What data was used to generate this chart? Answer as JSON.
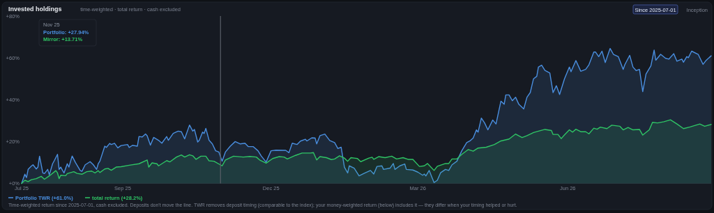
{
  "chart_data": {
    "type": "area",
    "title": "Invested holdings",
    "subtitle": "time-weighted · total return · cash excluded",
    "xlim": [
      "2025-07-01",
      "2026-08-28"
    ],
    "xticks": [
      {
        "value": "2025-07-01",
        "label": "Jul 25"
      },
      {
        "value": "2025-09-01",
        "label": "Sep 25"
      },
      {
        "value": "2025-12-01",
        "label": "Dec 25"
      },
      {
        "value": "2026-03-01",
        "label": "Mar 26"
      },
      {
        "value": "2026-06-01",
        "label": "Jun 26"
      }
    ],
    "ylim": [
      0,
      80
    ],
    "yticks": [
      {
        "value": 0,
        "label": "+0%"
      },
      {
        "value": 20,
        "label": "+20%"
      },
      {
        "value": 40,
        "label": "+40%"
      },
      {
        "value": 60,
        "label": "+60%"
      },
      {
        "value": 80,
        "label": "+80%"
      }
    ],
    "grid": false,
    "legend": "bottom left",
    "line_style": "solid",
    "ref_lines": [
      {
        "axis": "x",
        "value": "2025-10-31",
        "color": "#5a5f68"
      }
    ],
    "annotations": [
      "Since 2025-07-01",
      "Inception",
      "Nov 25",
      "Portfolio: +27.94%",
      "Mirror: +13.71%",
      "Time-weighted return since 2025-07-01, cash excluded. Deposits don't move the line. TWR removes deposit timing (comparable to the index); your money-weighted return (below) includes it — they differ when your timing helped or hurt."
    ],
    "series": [
      {
        "name": "Portfolio TWR (+61.0%)",
        "color": "#4a8fe0",
        "x": [
          "2025-07-01",
          "2025-07-03",
          "2025-07-04",
          "2025-07-05",
          "2025-07-07",
          "2025-07-08",
          "2025-07-10",
          "2025-07-11",
          "2025-07-12",
          "2025-07-14",
          "2025-07-15",
          "2025-07-17",
          "2025-07-18",
          "2025-07-20",
          "2025-07-21",
          "2025-07-23",
          "2025-07-24",
          "2025-07-25",
          "2025-07-27",
          "2025-07-29",
          "2025-07-30",
          "2025-08-01",
          "2025-08-03",
          "2025-08-06",
          "2025-08-07",
          "2025-08-09",
          "2025-08-12",
          "2025-08-14",
          "2025-08-16",
          "2025-08-17",
          "2025-08-18",
          "2025-08-21",
          "2025-08-22",
          "2025-08-24",
          "2025-08-25",
          "2025-08-27",
          "2025-08-29",
          "2025-08-31",
          "2025-09-04",
          "2025-09-05",
          "2025-09-07",
          "2025-09-10",
          "2025-09-11",
          "2025-09-13",
          "2025-09-15",
          "2025-09-16",
          "2025-09-18",
          "2025-09-20",
          "2025-09-23",
          "2025-09-25",
          "2025-09-28",
          "2025-09-29",
          "2025-10-02",
          "2025-10-05",
          "2025-10-07",
          "2025-10-09",
          "2025-10-12",
          "2025-10-14",
          "2025-10-15",
          "2025-10-17",
          "2025-10-18",
          "2025-10-20",
          "2025-10-21",
          "2025-10-22",
          "2025-10-24",
          "2025-10-26",
          "2025-10-28",
          "2025-10-30",
          "2025-11-01",
          "2025-11-03",
          "2025-11-06",
          "2025-11-09",
          "2025-11-12",
          "2025-11-15",
          "2025-11-17",
          "2025-11-20",
          "2025-11-23",
          "2025-11-25",
          "2025-11-28",
          "2025-12-01",
          "2025-12-04",
          "2025-12-10",
          "2025-12-12",
          "2025-12-14",
          "2025-12-17",
          "2025-12-19",
          "2025-12-22",
          "2025-12-23",
          "2025-12-26",
          "2025-12-28",
          "2025-12-29",
          "2025-12-31",
          "2026-01-03",
          "2026-01-06",
          "2026-01-09",
          "2026-01-11",
          "2026-01-13",
          "2026-01-15",
          "2026-01-17",
          "2026-01-18",
          "2026-01-21",
          "2026-01-24",
          "2026-01-27",
          "2026-01-31",
          "2026-02-02",
          "2026-02-04",
          "2026-02-07",
          "2026-02-08",
          "2026-02-12",
          "2026-02-14",
          "2026-02-15",
          "2026-02-18",
          "2026-02-21",
          "2026-02-22",
          "2026-02-26",
          "2026-03-01",
          "2026-03-04",
          "2026-03-05",
          "2026-03-06",
          "2026-03-08",
          "2026-03-10",
          "2026-03-11",
          "2026-03-13",
          "2026-03-15",
          "2026-03-18",
          "2026-03-20",
          "2026-03-22",
          "2026-03-25",
          "2026-03-28",
          "2026-03-31",
          "2026-04-02",
          "2026-04-04",
          "2026-04-06",
          "2026-04-07",
          "2026-04-09",
          "2026-04-11",
          "2026-04-13",
          "2026-04-16",
          "2026-04-18",
          "2026-04-21",
          "2026-04-23",
          "2026-04-24",
          "2026-04-26",
          "2026-04-28",
          "2026-04-30",
          "2026-05-02",
          "2026-05-05",
          "2026-05-07",
          "2026-05-09",
          "2026-05-11",
          "2026-05-13",
          "2026-05-14",
          "2026-05-16",
          "2026-05-18",
          "2026-05-21",
          "2026-05-23",
          "2026-05-25",
          "2026-05-27",
          "2026-05-30",
          "2026-06-02",
          "2026-06-03",
          "2026-06-06",
          "2026-06-09",
          "2026-06-12",
          "2026-06-14",
          "2026-06-17",
          "2026-06-18",
          "2026-06-20",
          "2026-06-22",
          "2026-06-24",
          "2026-06-27",
          "2026-06-29",
          "2026-07-02",
          "2026-07-05",
          "2026-07-06",
          "2026-07-09",
          "2026-07-11",
          "2026-07-13",
          "2026-07-15",
          "2026-07-17",
          "2026-07-19",
          "2026-07-22",
          "2026-07-24",
          "2026-07-25",
          "2026-07-28",
          "2026-07-31",
          "2026-08-02",
          "2026-08-05",
          "2026-08-07",
          "2026-08-10",
          "2026-08-11",
          "2026-08-13",
          "2026-08-14",
          "2026-08-16",
          "2026-08-20",
          "2026-08-23",
          "2026-08-25",
          "2026-08-28"
        ],
        "values": [
          0,
          4.4,
          2.8,
          6.7,
          8.3,
          8.9,
          6.9,
          7.8,
          13,
          5,
          4.7,
          6.7,
          4.1,
          9.4,
          10.8,
          13.9,
          6.7,
          7.8,
          5,
          9.4,
          7.8,
          13.1,
          10,
          6.1,
          5.8,
          8.9,
          10.4,
          8.9,
          6.7,
          9.4,
          10.6,
          17.8,
          17.2,
          19.1,
          18.6,
          19.2,
          17,
          18.1,
          18.6,
          17.2,
          18.2,
          17.8,
          22.4,
          22.2,
          23.6,
          22.8,
          18.3,
          22,
          20.6,
          19.2,
          22.4,
          20.6,
          23.9,
          25,
          24.7,
          21.3,
          27.9,
          25,
          25.8,
          19.8,
          20.6,
          24.5,
          23.9,
          26.3,
          20.6,
          18.9,
          15.6,
          15,
          10.6,
          15,
          17.8,
          20,
          18.9,
          19.2,
          17.6,
          17.6,
          15.6,
          13.1,
          10.2,
          15.6,
          15.9,
          15.8,
          14.7,
          19.2,
          18.6,
          20.2,
          21.1,
          20.3,
          21.8,
          21.7,
          18.9,
          22.8,
          23.6,
          20.5,
          19.5,
          16.7,
          17.3,
          7.8,
          5,
          8.4,
          7.3,
          3.6,
          4.8,
          6.2,
          4.5,
          8.1,
          8.4,
          6.7,
          7.3,
          9.5,
          6.7,
          8.4,
          9.3,
          6.7,
          6.4,
          5.4,
          3.9,
          4.5,
          3.6,
          6.2,
          2.3,
          0.4,
          1.5,
          5.1,
          6.7,
          6.2,
          8.9,
          10.6,
          15.6,
          19.5,
          20.3,
          21.7,
          25.6,
          24.5,
          31.2,
          28.9,
          25.6,
          30.3,
          28.4,
          39.3,
          37.8,
          42.3,
          42.3,
          39.5,
          41.2,
          37.8,
          35.6,
          41.2,
          43.4,
          50,
          51.2,
          55.6,
          56.5,
          54,
          52.8,
          43.4,
          46.7,
          42.5,
          50,
          55.6,
          53.4,
          58.7,
          53.6,
          54.5,
          56.7,
          62.8,
          62.8,
          60.6,
          63.2,
          57.8,
          64.5,
          61.7,
          60.6,
          54.5,
          56.7,
          61.2,
          55.6,
          53.9,
          54.5,
          43.9,
          52.3,
          56.2,
          63.7,
          58.9,
          61.7,
          59.8,
          59.4,
          62,
          58.4,
          59.4,
          57.9,
          60.6,
          60.1,
          63.2,
          61.7,
          56.9,
          58.9,
          61
        ]
      },
      {
        "name": "total return (+28.2%)",
        "color": "#2fc565",
        "x": [
          "2025-07-01",
          "2025-07-03",
          "2025-07-05",
          "2025-07-07",
          "2025-07-10",
          "2025-07-13",
          "2025-07-15",
          "2025-07-18",
          "2025-07-22",
          "2025-07-23",
          "2025-07-24",
          "2025-07-25",
          "2025-07-28",
          "2025-07-29",
          "2025-08-02",
          "2025-08-04",
          "2025-08-07",
          "2025-08-10",
          "2025-08-13",
          "2025-08-15",
          "2025-08-17",
          "2025-08-18",
          "2025-08-21",
          "2025-08-23",
          "2025-08-25",
          "2025-08-28",
          "2025-08-31",
          "2025-09-05",
          "2025-09-11",
          "2025-09-16",
          "2025-09-17",
          "2025-09-19",
          "2025-09-22",
          "2025-09-23",
          "2025-09-28",
          "2025-09-30",
          "2025-10-04",
          "2025-10-07",
          "2025-10-09",
          "2025-10-12",
          "2025-10-14",
          "2025-10-16",
          "2025-10-19",
          "2025-10-22",
          "2025-10-24",
          "2025-10-27",
          "2025-11-01",
          "2025-11-03",
          "2025-11-08",
          "2025-11-14",
          "2025-11-18",
          "2025-11-22",
          "2025-11-24",
          "2025-11-28",
          "2025-12-02",
          "2025-12-06",
          "2025-12-09",
          "2025-12-11",
          "2025-12-16",
          "2025-12-20",
          "2025-12-25",
          "2025-12-27",
          "2025-12-29",
          "2025-12-31",
          "2026-01-04",
          "2026-01-07",
          "2026-01-09",
          "2026-01-12",
          "2026-01-15",
          "2026-01-17",
          "2026-01-19",
          "2026-01-23",
          "2026-01-25",
          "2026-01-30",
          "2026-02-01",
          "2026-02-02",
          "2026-02-05",
          "2026-02-09",
          "2026-02-13",
          "2026-02-16",
          "2026-02-20",
          "2026-02-23",
          "2026-02-26",
          "2026-03-02",
          "2026-03-05",
          "2026-03-07",
          "2026-03-11",
          "2026-03-13",
          "2026-03-18",
          "2026-03-20",
          "2026-03-22",
          "2026-03-25",
          "2026-03-28",
          "2026-04-01",
          "2026-04-04",
          "2026-04-07",
          "2026-04-12",
          "2026-04-17",
          "2026-04-21",
          "2026-04-26",
          "2026-04-30",
          "2026-05-04",
          "2026-05-07",
          "2026-05-11",
          "2026-05-16",
          "2026-05-18",
          "2026-05-22",
          "2026-05-23",
          "2026-05-26",
          "2026-05-28",
          "2026-05-30",
          "2026-06-02",
          "2026-06-04",
          "2026-06-06",
          "2026-06-09",
          "2026-06-12",
          "2026-06-14",
          "2026-06-17",
          "2026-06-19",
          "2026-06-21",
          "2026-06-25",
          "2026-06-28",
          "2026-07-03",
          "2026-07-05",
          "2026-07-08",
          "2026-07-11",
          "2026-07-15",
          "2026-07-17",
          "2026-07-21",
          "2026-07-23",
          "2026-07-26",
          "2026-07-30",
          "2026-08-03",
          "2026-08-07",
          "2026-08-11",
          "2026-08-15",
          "2026-08-21",
          "2026-08-24",
          "2026-08-28"
        ],
        "values": [
          0,
          1.5,
          0.9,
          1.8,
          2.3,
          3.4,
          2,
          3.6,
          6.1,
          5,
          2.3,
          3.9,
          3.7,
          4.7,
          5.6,
          4.8,
          4.4,
          5.6,
          5.9,
          5,
          6.1,
          5.2,
          6.9,
          7.2,
          6.3,
          7.8,
          8,
          8.7,
          9.4,
          11.2,
          7.8,
          9.8,
          9.4,
          8.4,
          10.9,
          10.3,
          12.6,
          13.6,
          12.6,
          13.7,
          13.2,
          11.5,
          13,
          13,
          10.8,
          10.6,
          8.4,
          11.2,
          13,
          12.6,
          12.9,
          12.6,
          11.2,
          9.7,
          11.9,
          12.8,
          12.6,
          11.7,
          13.4,
          14.5,
          14.5,
          14.7,
          11.2,
          12.8,
          12.3,
          11.4,
          11.7,
          13.2,
          12.1,
          10.6,
          12.3,
          11.9,
          10.4,
          12.1,
          12.5,
          11.5,
          12.8,
          12.3,
          13,
          11.7,
          12.3,
          11.5,
          11.5,
          8.1,
          8.4,
          9.5,
          6.2,
          8.2,
          9.5,
          9.5,
          11.7,
          11.7,
          13.9,
          16.2,
          15.4,
          16.9,
          17.3,
          18.6,
          20.3,
          21.2,
          23.6,
          21.9,
          22.8,
          24.3,
          25.4,
          25.8,
          25.3,
          23.4,
          23.4,
          21.4,
          23.2,
          25.6,
          24.5,
          25.9,
          24.7,
          24.7,
          23.7,
          26.4,
          25.9,
          26.9,
          26.2,
          27.8,
          27.3,
          25.6,
          26.7,
          25.6,
          25.8,
          23.1,
          25.6,
          29.2,
          28.9,
          29.5,
          30.4,
          28.4,
          26.2,
          27,
          28.4,
          27.3,
          28.2
        ]
      }
    ]
  }
}
